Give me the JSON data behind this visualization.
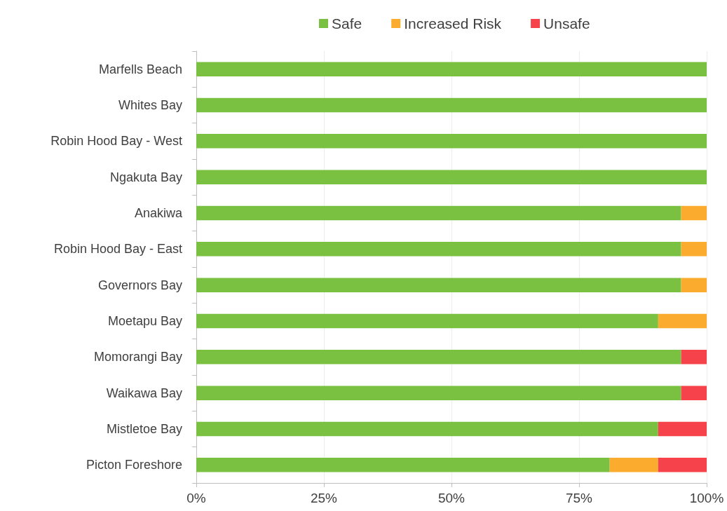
{
  "chart_data": {
    "type": "bar",
    "orientation": "horizontal",
    "stacked": true,
    "categories": [
      "Marfells Beach",
      "Whites Bay",
      "Robin Hood Bay - West",
      "Ngakuta Bay",
      "Anakiwa",
      "Robin Hood Bay - East",
      "Governors Bay",
      "Moetapu Bay",
      "Momorangi Bay",
      "Waikawa Bay",
      "Mistletoe Bay",
      "Picton Foreshore"
    ],
    "series": [
      {
        "name": "Safe",
        "color": "#7ac142",
        "values": [
          100,
          100,
          100,
          100,
          95,
          95,
          95,
          90.5,
          95,
          95,
          90.5,
          81
        ]
      },
      {
        "name": "Increased Risk",
        "color": "#fbab2d",
        "values": [
          0,
          0,
          0,
          0,
          5,
          5,
          5,
          9.5,
          0,
          0,
          0,
          9.5
        ]
      },
      {
        "name": "Unsafe",
        "color": "#f5424b",
        "values": [
          0,
          0,
          0,
          0,
          0,
          0,
          0,
          0,
          5,
          5,
          9.5,
          9.5
        ]
      }
    ],
    "xlim": [
      0,
      100
    ],
    "xticks": [
      {
        "value": 0,
        "label": "0%"
      },
      {
        "value": 25,
        "label": "25%"
      },
      {
        "value": 50,
        "label": "50%"
      },
      {
        "value": 75,
        "label": "75%"
      },
      {
        "value": 100,
        "label": "100%"
      }
    ],
    "grid": "x",
    "legend": "top"
  }
}
